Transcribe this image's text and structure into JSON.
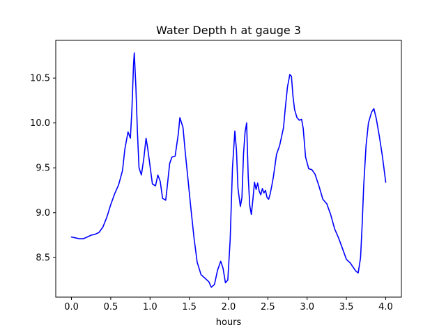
{
  "chart_data": {
    "type": "line",
    "title": "Water Depth h at gauge 3",
    "xlabel": "hours",
    "ylabel": "",
    "xlim": [
      -0.2,
      4.2
    ],
    "ylim": [
      8.06,
      10.92
    ],
    "xticks": [
      0.0,
      0.5,
      1.0,
      1.5,
      2.0,
      2.5,
      3.0,
      3.5,
      4.0
    ],
    "xtick_labels": [
      "0.0",
      "0.5",
      "1.0",
      "1.5",
      "2.0",
      "2.5",
      "3.0",
      "3.5",
      "4.0"
    ],
    "yticks": [
      8.5,
      9.0,
      9.5,
      10.0,
      10.5
    ],
    "ytick_labels": [
      "8.5",
      "9.0",
      "9.5",
      "10.0",
      "10.5"
    ],
    "grid": false,
    "series": [
      {
        "color": "#0000ff",
        "x": [
          0.0,
          0.05,
          0.1,
          0.15,
          0.2,
          0.25,
          0.3,
          0.35,
          0.4,
          0.45,
          0.5,
          0.55,
          0.6,
          0.65,
          0.68,
          0.72,
          0.75,
          0.77,
          0.79,
          0.8,
          0.82,
          0.84,
          0.86,
          0.89,
          0.92,
          0.95,
          0.97,
          1.0,
          1.03,
          1.07,
          1.1,
          1.13,
          1.16,
          1.2,
          1.22,
          1.25,
          1.28,
          1.32,
          1.36,
          1.38,
          1.42,
          1.45,
          1.48,
          1.52,
          1.56,
          1.6,
          1.65,
          1.7,
          1.75,
          1.78,
          1.82,
          1.86,
          1.9,
          1.93,
          1.96,
          1.99,
          2.02,
          2.05,
          2.08,
          2.1,
          2.12,
          2.15,
          2.17,
          2.19,
          2.21,
          2.23,
          2.25,
          2.27,
          2.29,
          2.31,
          2.33,
          2.35,
          2.37,
          2.39,
          2.41,
          2.43,
          2.45,
          2.47,
          2.49,
          2.51,
          2.53,
          2.55,
          2.57,
          2.59,
          2.61,
          2.65,
          2.7,
          2.72,
          2.75,
          2.78,
          2.8,
          2.82,
          2.84,
          2.87,
          2.9,
          2.93,
          2.95,
          2.98,
          3.02,
          3.06,
          3.1,
          3.15,
          3.2,
          3.25,
          3.3,
          3.35,
          3.4,
          3.45,
          3.5,
          3.55,
          3.58,
          3.62,
          3.65,
          3.68,
          3.7,
          3.72,
          3.75,
          3.78,
          3.82,
          3.85,
          3.88,
          3.92,
          3.96,
          4.0
        ],
        "values": [
          8.73,
          8.72,
          8.71,
          8.71,
          8.73,
          8.75,
          8.76,
          8.78,
          8.84,
          8.95,
          9.09,
          9.21,
          9.31,
          9.47,
          9.71,
          9.9,
          9.83,
          10.15,
          10.65,
          10.78,
          10.4,
          9.9,
          9.5,
          9.42,
          9.6,
          9.83,
          9.72,
          9.52,
          9.32,
          9.3,
          9.42,
          9.35,
          9.16,
          9.14,
          9.3,
          9.55,
          9.62,
          9.63,
          9.88,
          10.06,
          9.95,
          9.66,
          9.4,
          9.05,
          8.72,
          8.45,
          8.31,
          8.27,
          8.23,
          8.17,
          8.2,
          8.36,
          8.46,
          8.38,
          8.22,
          8.25,
          8.7,
          9.5,
          9.91,
          9.7,
          9.27,
          9.07,
          9.17,
          9.65,
          9.9,
          10.0,
          9.4,
          9.08,
          8.98,
          9.15,
          9.34,
          9.26,
          9.33,
          9.24,
          9.2,
          9.27,
          9.22,
          9.25,
          9.17,
          9.15,
          9.21,
          9.3,
          9.4,
          9.52,
          9.65,
          9.75,
          9.95,
          10.15,
          10.4,
          10.54,
          10.52,
          10.3,
          10.15,
          10.06,
          10.03,
          10.04,
          9.94,
          9.62,
          9.49,
          9.48,
          9.43,
          9.3,
          9.15,
          9.1,
          8.98,
          8.82,
          8.72,
          8.6,
          8.48,
          8.44,
          8.4,
          8.35,
          8.33,
          8.5,
          8.85,
          9.3,
          9.75,
          10.0,
          10.12,
          10.16,
          10.05,
          9.85,
          9.62,
          9.34
        ]
      }
    ]
  }
}
